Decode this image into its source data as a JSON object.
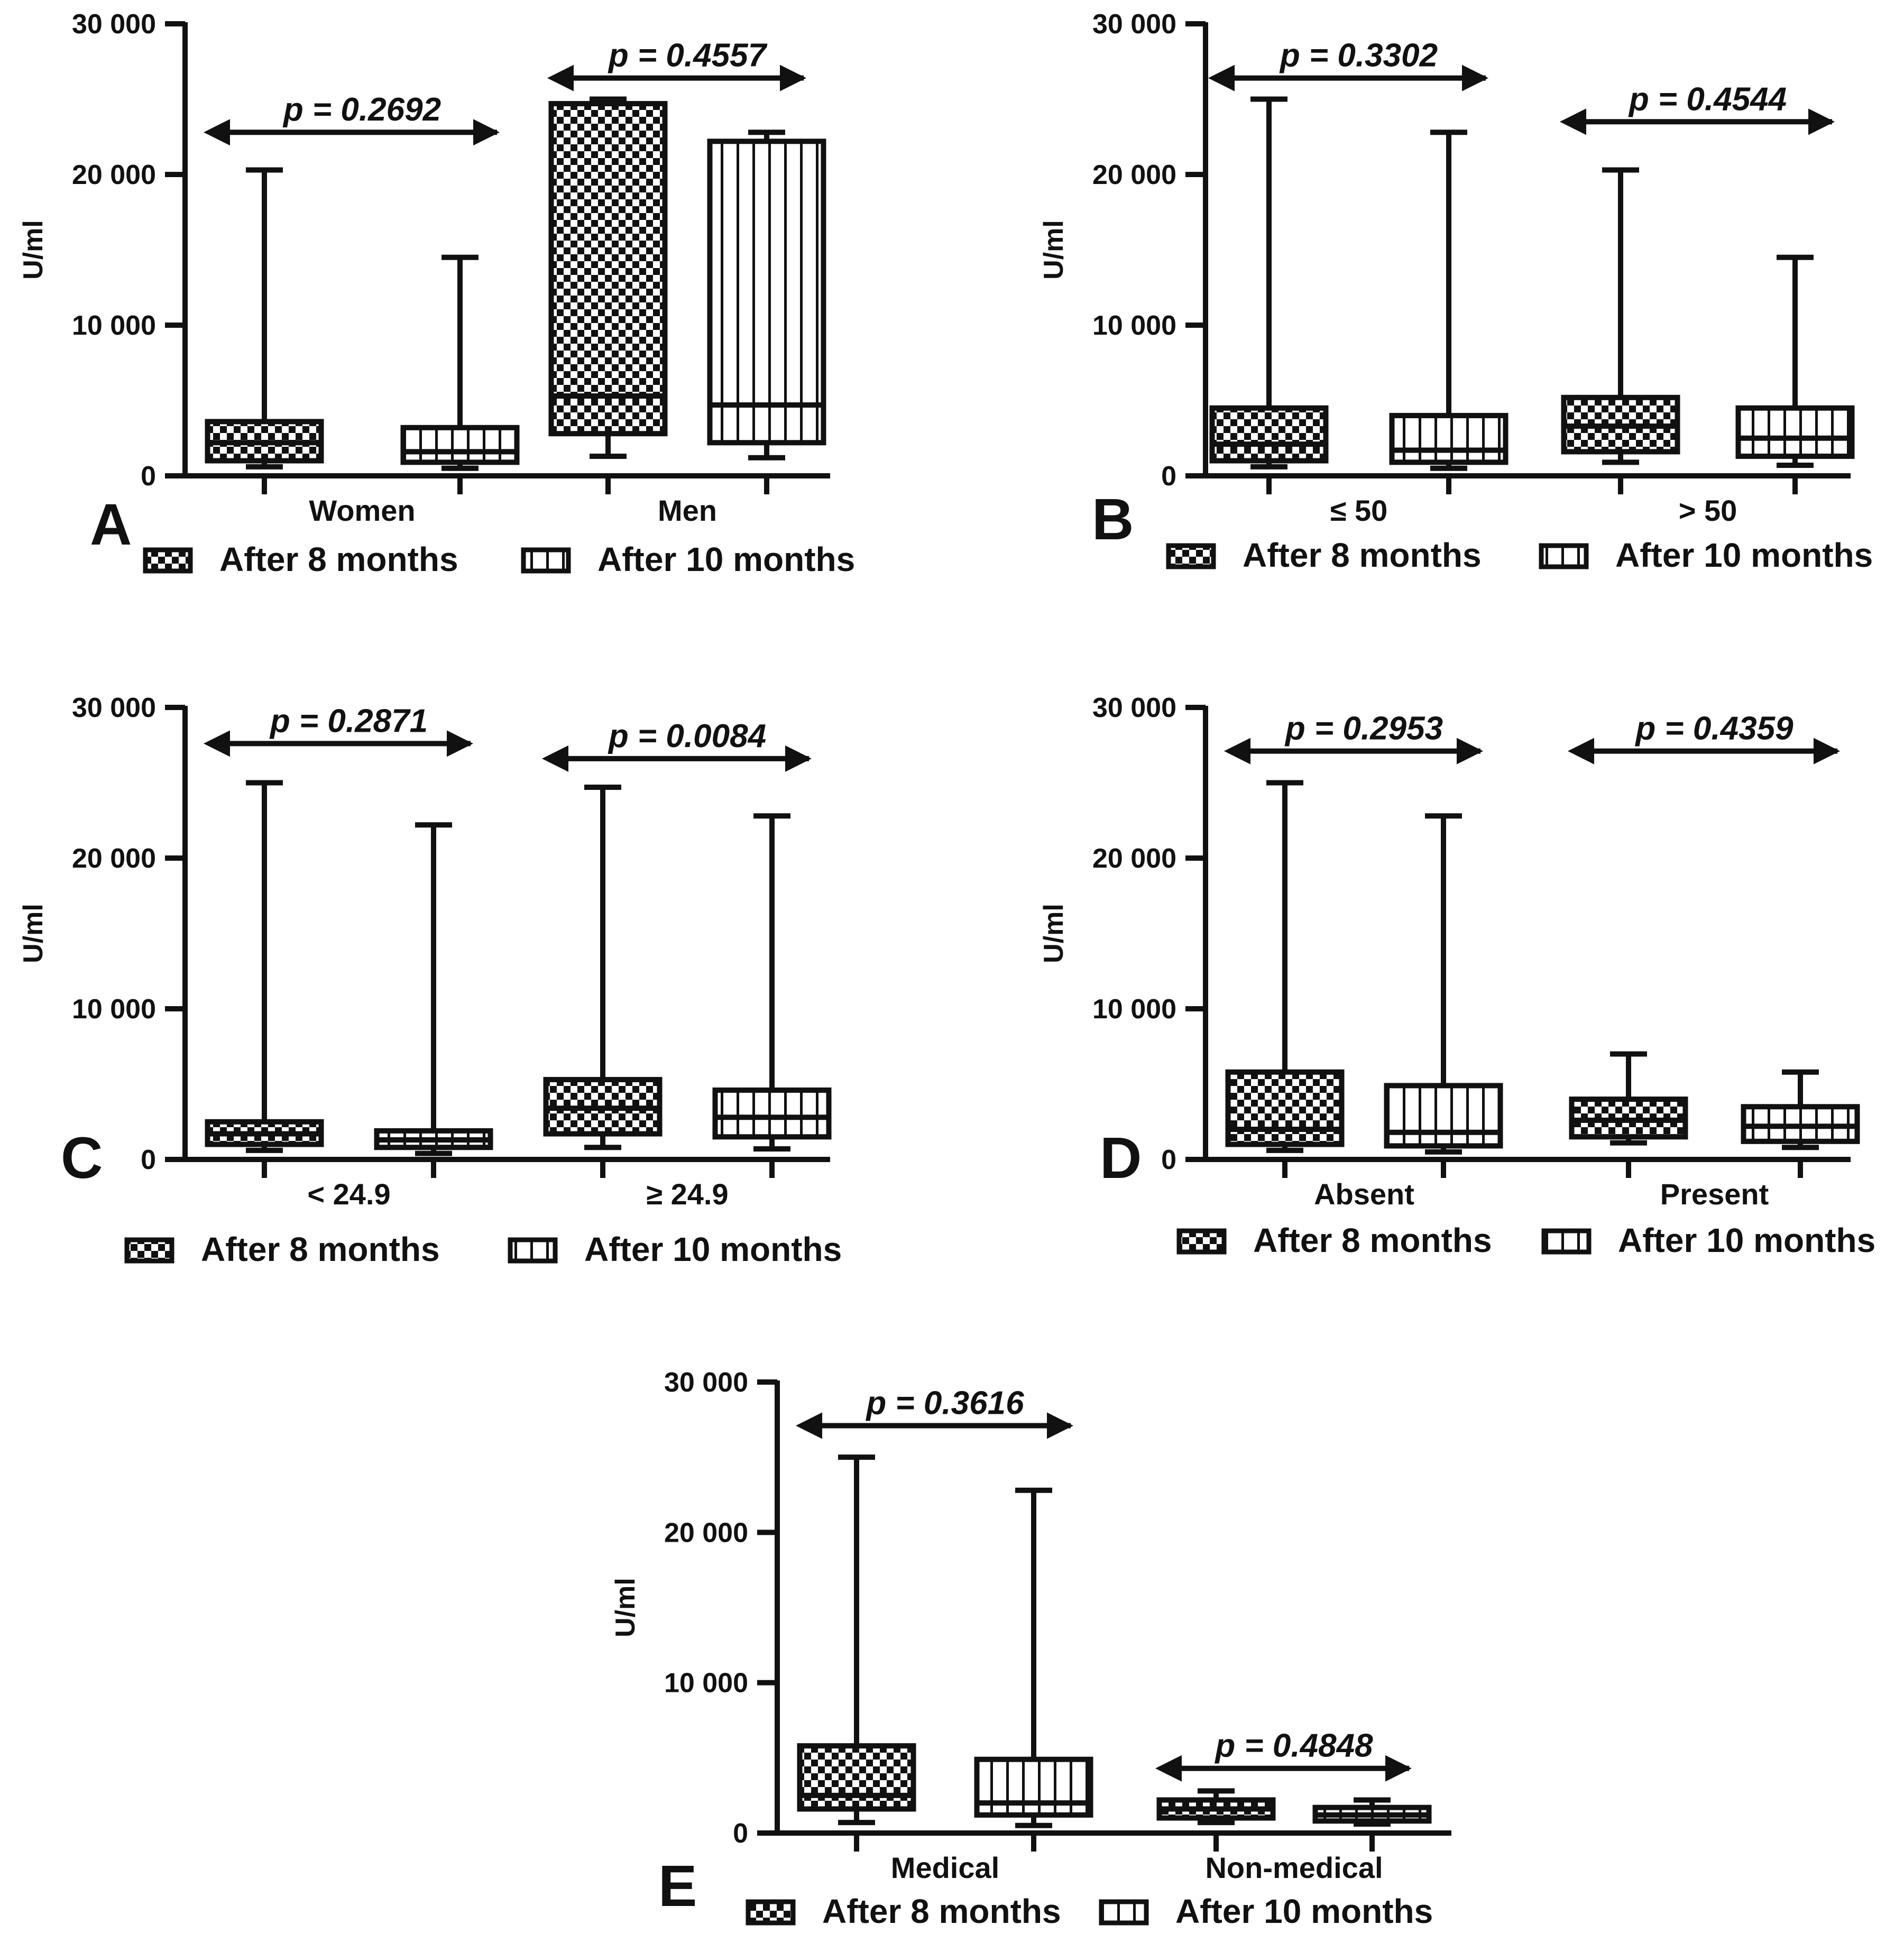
{
  "chart_data": [
    {
      "type": "box",
      "panel_label": "A",
      "ylabel": "U/ml",
      "ylim": [
        0,
        30000
      ],
      "yticks": [
        {
          "value": 0,
          "label": "0"
        },
        {
          "value": 10000,
          "label": "10 000"
        },
        {
          "value": 20000,
          "label": "20 000"
        },
        {
          "value": 30000,
          "label": "30 000"
        }
      ],
      "legend": [
        "After 8 months",
        "After 10 months"
      ],
      "groups": [
        {
          "label": "Women",
          "p_value": "p = 0.2692",
          "arrow_y": 22800,
          "boxes": [
            {
              "series": "After 8 months",
              "min": 600,
              "q1": 1000,
              "median": 2200,
              "q3": 3600,
              "max": 20300
            },
            {
              "series": "After 10 months",
              "min": 500,
              "q1": 900,
              "median": 1600,
              "q3": 3200,
              "max": 14500
            }
          ]
        },
        {
          "label": "Men",
          "p_value": "p = 0.4557",
          "arrow_y": 26400,
          "boxes": [
            {
              "series": "After 8 months",
              "min": 1300,
              "q1": 2800,
              "median": 5300,
              "q3": 24700,
              "max": 25000
            },
            {
              "series": "After 10 months",
              "min": 1200,
              "q1": 2200,
              "median": 4700,
              "q3": 22200,
              "max": 22800
            }
          ]
        }
      ]
    },
    {
      "type": "box",
      "panel_label": "B",
      "ylabel": "U/ml",
      "ylim": [
        0,
        30000
      ],
      "yticks": [
        {
          "value": 0,
          "label": "0"
        },
        {
          "value": 10000,
          "label": "10 000"
        },
        {
          "value": 20000,
          "label": "20 000"
        },
        {
          "value": 30000,
          "label": "30 000"
        }
      ],
      "legend": [
        "After 8 months",
        "After 10 months"
      ],
      "groups": [
        {
          "label": "≤ 50",
          "p_value": "p = 0.3302",
          "arrow_y": 26400,
          "boxes": [
            {
              "series": "After 8 months",
              "min": 600,
              "q1": 1000,
              "median": 2100,
              "q3": 4500,
              "max": 25000
            },
            {
              "series": "After 10 months",
              "min": 500,
              "q1": 900,
              "median": 1700,
              "q3": 4000,
              "max": 22800
            }
          ]
        },
        {
          "label": "> 50",
          "p_value": "p = 0.4544",
          "arrow_y": 23500,
          "boxes": [
            {
              "series": "After 8 months",
              "min": 900,
              "q1": 1600,
              "median": 3300,
              "q3": 5200,
              "max": 20300
            },
            {
              "series": "After 10 months",
              "min": 700,
              "q1": 1300,
              "median": 2500,
              "q3": 4500,
              "max": 14500
            }
          ]
        }
      ]
    },
    {
      "type": "box",
      "panel_label": "C",
      "ylabel": "U/ml",
      "ylim": [
        0,
        30000
      ],
      "yticks": [
        {
          "value": 0,
          "label": "0"
        },
        {
          "value": 10000,
          "label": "10 000"
        },
        {
          "value": 20000,
          "label": "20 000"
        },
        {
          "value": 30000,
          "label": "30 000"
        }
      ],
      "legend": [
        "After 8 months",
        "After 10 months"
      ],
      "groups": [
        {
          "label": "< 24.9",
          "p_value": "p = 0.2871",
          "arrow_y": 27600,
          "boxes": [
            {
              "series": "After 8 months",
              "min": 600,
              "q1": 1000,
              "median": 1700,
              "q3": 2500,
              "max": 25000
            },
            {
              "series": "After 10 months",
              "min": 400,
              "q1": 800,
              "median": 1300,
              "q3": 1900,
              "max": 22200
            }
          ]
        },
        {
          "label": "≥ 24.9",
          "p_value": "p = 0.0084",
          "arrow_y": 26600,
          "boxes": [
            {
              "series": "After 8 months",
              "min": 800,
              "q1": 1700,
              "median": 3400,
              "q3": 5300,
              "max": 24700
            },
            {
              "series": "After 10 months",
              "min": 700,
              "q1": 1500,
              "median": 2800,
              "q3": 4600,
              "max": 22800
            }
          ]
        }
      ]
    },
    {
      "type": "box",
      "panel_label": "D",
      "ylabel": "U/ml",
      "ylim": [
        0,
        30000
      ],
      "yticks": [
        {
          "value": 0,
          "label": "0"
        },
        {
          "value": 10000,
          "label": "10 000"
        },
        {
          "value": 20000,
          "label": "20 000"
        },
        {
          "value": 30000,
          "label": "30 000"
        }
      ],
      "legend": [
        "After 8 months",
        "After 10 months"
      ],
      "groups": [
        {
          "label": "Absent",
          "p_value": "p = 0.2953",
          "arrow_y": 27100,
          "boxes": [
            {
              "series": "After 8 months",
              "min": 600,
              "q1": 1000,
              "median": 2000,
              "q3": 5800,
              "max": 25000
            },
            {
              "series": "After 10 months",
              "min": 500,
              "q1": 900,
              "median": 1800,
              "q3": 4900,
              "max": 22800
            }
          ]
        },
        {
          "label": "Present",
          "p_value": "p = 0.4359",
          "arrow_y": 27100,
          "boxes": [
            {
              "series": "After 8 months",
              "min": 1100,
              "q1": 1500,
              "median": 2600,
              "q3": 4000,
              "max": 7000
            },
            {
              "series": "After 10 months",
              "min": 800,
              "q1": 1200,
              "median": 2200,
              "q3": 3500,
              "max": 5800
            }
          ]
        }
      ]
    },
    {
      "type": "box",
      "panel_label": "E",
      "ylabel": "U/ml",
      "ylim": [
        0,
        30000
      ],
      "yticks": [
        {
          "value": 0,
          "label": "0"
        },
        {
          "value": 10000,
          "label": "10 000"
        },
        {
          "value": 20000,
          "label": "20 000"
        },
        {
          "value": 30000,
          "label": "30 000"
        }
      ],
      "legend": [
        "After 8 months",
        "After 10 months"
      ],
      "groups": [
        {
          "label": "Medical",
          "p_value": "p = 0.3616",
          "arrow_y": 27100,
          "boxes": [
            {
              "series": "After 8 months",
              "min": 700,
              "q1": 1600,
              "median": 2500,
              "q3": 5800,
              "max": 25000
            },
            {
              "series": "After 10 months",
              "min": 500,
              "q1": 1200,
              "median": 2000,
              "q3": 4900,
              "max": 22800
            }
          ]
        },
        {
          "label": "Non-medical",
          "p_value": "p = 0.4848",
          "arrow_y": 4300,
          "boxes": [
            {
              "series": "After 8 months",
              "min": 700,
              "q1": 1000,
              "median": 1600,
              "q3": 2200,
              "max": 2800
            },
            {
              "series": "After 10 months",
              "min": 600,
              "q1": 800,
              "median": 1200,
              "q3": 1700,
              "max": 2200
            }
          ]
        }
      ]
    }
  ]
}
